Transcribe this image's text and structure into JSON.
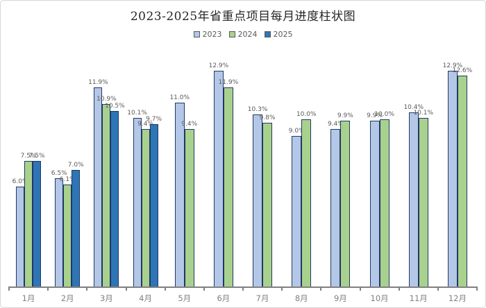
{
  "chart_data": {
    "type": "bar",
    "title": "2023-2025年省重点项目每月进度柱状图",
    "categories": [
      "1月",
      "2月",
      "3月",
      "4月",
      "5月",
      "6月",
      "7月",
      "8月",
      "9月",
      "10月",
      "11月",
      "12月"
    ],
    "series": [
      {
        "name": "2023",
        "color": "#B4C7E7",
        "values": [
          6.0,
          6.5,
          11.9,
          10.1,
          11.0,
          12.9,
          10.3,
          9.0,
          9.4,
          9.9,
          10.4,
          12.9
        ]
      },
      {
        "name": "2024",
        "color": "#A9D18E",
        "values": [
          7.5,
          6.1,
          10.9,
          9.4,
          9.4,
          11.9,
          9.8,
          10.0,
          9.9,
          10.0,
          10.1,
          12.6
        ]
      },
      {
        "name": "2025",
        "color": "#2E75B6",
        "values": [
          7.5,
          7.0,
          10.5,
          9.7,
          null,
          null,
          null,
          null,
          null,
          null,
          null,
          null
        ]
      }
    ],
    "value_suffix": "%",
    "value_decimals": 1,
    "data_labels": true,
    "ylim": [
      0,
      14.5
    ],
    "grid": false,
    "y_axis_visible": false,
    "legend_position": "top"
  },
  "colors": {
    "bar_border": "#1F3864",
    "axis": "#808080",
    "data_label_text": "#595959",
    "tick_label_text": "#808080",
    "title_text": "#262626",
    "frame_border": "#D6D6D6",
    "background": "#FFFFFF"
  }
}
